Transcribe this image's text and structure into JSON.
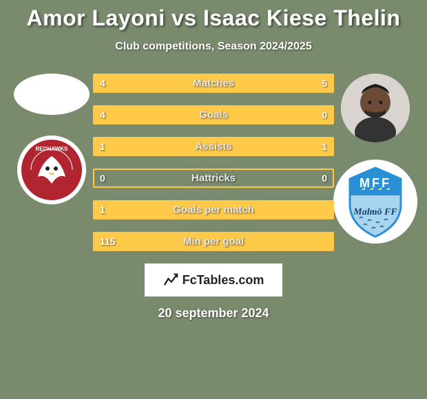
{
  "background_color": "#7a8a6c",
  "title": "Amor Layoni vs Isaac Kiese Thelin",
  "title_color": "#ffffff",
  "title_fontsize": 32,
  "subtitle": "Club competitions, Season 2024/2025",
  "subtitle_color": "#ffffff",
  "subtitle_fontsize": 16,
  "branding_text": "FcTables.com",
  "date": "20 september 2024",
  "date_fontsize": 18,
  "bar_border_color": "#ffc94a",
  "bar_fill_color": "#ffc94a",
  "bar_empty_color": "transparent",
  "bar_label_color": "#e8e8e8",
  "bar_value_color": "#ffffff",
  "left_player": {
    "name": "Amor Layoni",
    "club": "Redhawks"
  },
  "right_player": {
    "name": "Isaac Kiese Thelin",
    "club": "Malmö FF"
  },
  "stats": [
    {
      "label": "Matches",
      "left_val": "4",
      "left_pct": 44.4,
      "right_val": "5",
      "right_pct": 55.6
    },
    {
      "label": "Goals",
      "left_val": "4",
      "left_pct": 100,
      "right_val": "0",
      "right_pct": 0
    },
    {
      "label": "Assists",
      "left_val": "1",
      "left_pct": 50,
      "right_val": "1",
      "right_pct": 50
    },
    {
      "label": "Hattricks",
      "left_val": "0",
      "left_pct": 0,
      "right_val": "0",
      "right_pct": 0
    },
    {
      "label": "Goals per match",
      "left_val": "1",
      "left_pct": 100,
      "right_val": "",
      "right_pct": 0
    },
    {
      "label": "Min per goal",
      "left_val": "115",
      "left_pct": 100,
      "right_val": "",
      "right_pct": 0
    }
  ],
  "club_logos": {
    "left": {
      "bg": "#ffffff",
      "primary": "#b0252f",
      "text": "REDHAWKS"
    },
    "right": {
      "bg": "#ffffff",
      "primary": "#2a8fd4",
      "text": "Malmö FF"
    }
  }
}
